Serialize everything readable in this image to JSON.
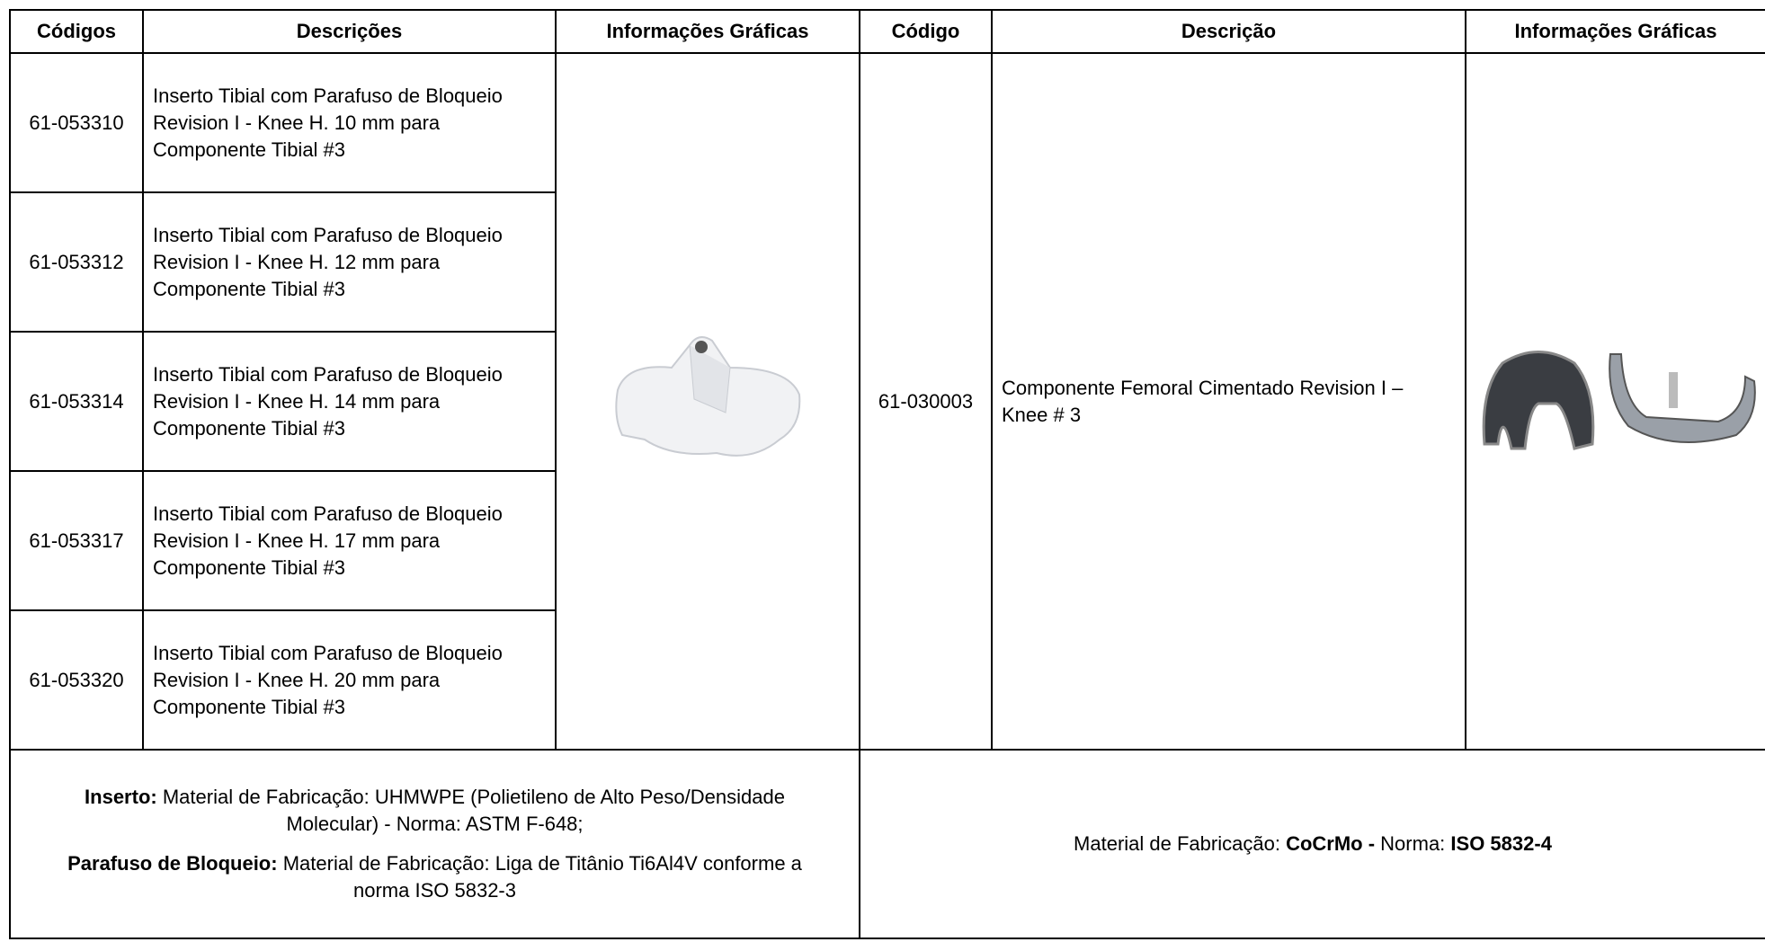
{
  "header": [
    "Códigos",
    "Descrições",
    "Informações Gráficas",
    "Código",
    "Descrição",
    "Informações Gráficas"
  ],
  "left_rows": [
    {
      "code": "61-053310",
      "description": "Inserto Tibial com  Parafuso de Bloqueio Revision I - Knee  H. 10 mm  para Componente Tibial #3"
    },
    {
      "code": "61-053312",
      "description": "Inserto Tibial com  Parafuso de Bloqueio Revision I - Knee  H. 12 mm  para Componente Tibial #3"
    },
    {
      "code": "61-053314",
      "description": "Inserto Tibial com  Parafuso de Bloqueio Revision I - Knee  H. 14 mm  para Componente Tibial #3"
    },
    {
      "code": "61-053317",
      "description": "Inserto Tibial com  Parafuso de Bloqueio Revision I - Knee  H. 17 mm  para Componente Tibial #3"
    },
    {
      "code": "61-053320",
      "description": "Inserto Tibial com  Parafuso de Bloqueio Revision I - Knee  H. 20 mm  para Componente Tibial #3"
    }
  ],
  "right_row": {
    "code": "61-030003",
    "description": "Componente Femoral Cimentado Revision I – Knee # 3"
  },
  "footer_left": [
    {
      "label": "Inserto:",
      "text": "Material de Fabricação: UHMWPE (Polietileno de Alto Peso/Densidade Molecular) - Norma: ASTM F-648;"
    },
    {
      "label": "Parafuso de Bloqueio:",
      "text": "Material de Fabricação: Liga de Titânio Ti6Al4V conforme a norma ISO 5832-3"
    }
  ],
  "footer_right": [
    "Material de Fabricação:",
    "CoCrMo -",
    "Norma:",
    "ISO 5832-4"
  ]
}
